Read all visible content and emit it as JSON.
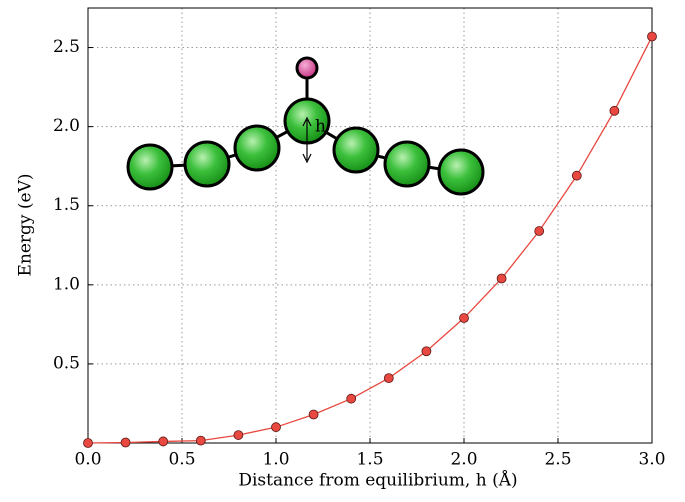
{
  "chart_data": {
    "type": "line",
    "xlabel": "Distance from equilibrium, h (Å)",
    "ylabel": "Energy (eV)",
    "annotation": "h",
    "x": [
      0.0,
      0.2,
      0.4,
      0.6,
      0.8,
      1.0,
      1.2,
      1.4,
      1.6,
      1.8,
      2.0,
      2.2,
      2.4,
      2.6,
      2.8,
      3.0
    ],
    "series": [
      {
        "color": "#e8483f",
        "values": [
          0,
          0.003,
          0.01,
          0.015,
          0.05,
          0.1,
          0.18,
          0.28,
          0.41,
          0.58,
          0.79,
          1.04,
          1.34,
          1.69,
          2.1,
          2.57
        ]
      }
    ],
    "xlim": [
      0,
      3.0
    ],
    "ylim": [
      0,
      2.75
    ],
    "xticks": [
      {
        "value": 0,
        "label": "0.0"
      },
      0.5,
      {
        "value": 1,
        "label": "1.0"
      },
      1.5,
      {
        "value": 2,
        "label": "2.0"
      },
      2.5,
      {
        "value": 3,
        "label": "3.0"
      }
    ],
    "yticks": [
      0.5,
      {
        "value": 1,
        "label": "1.0"
      },
      1.5,
      {
        "value": 2,
        "label": "2.0"
      },
      2.5
    ],
    "grid": true
  }
}
